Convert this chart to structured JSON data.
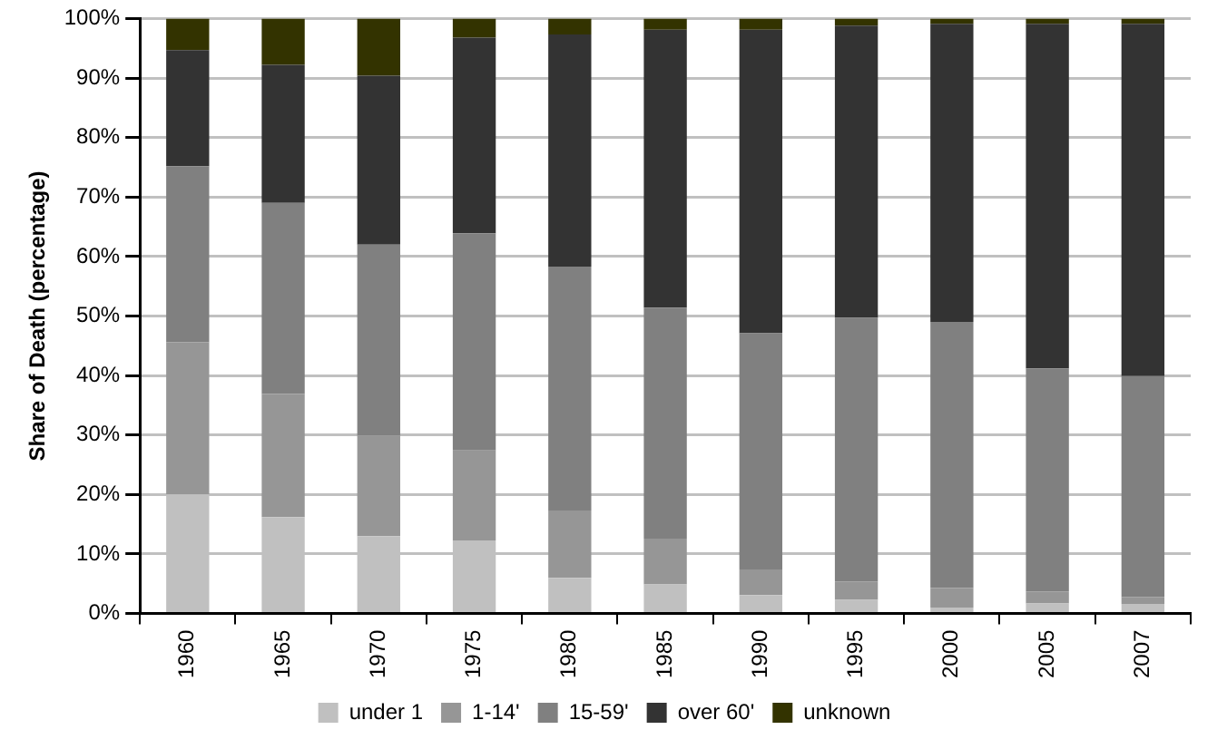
{
  "chart_data": {
    "type": "bar",
    "stacked": true,
    "ylabel": "Share of Death (percentage)",
    "categories": [
      "1960",
      "1965",
      "1970",
      "1975",
      "1980",
      "1985",
      "1990",
      "1995",
      "2000",
      "2005",
      "2007"
    ],
    "series": [
      {
        "name": "under 1",
        "color": "#c0c0c0",
        "values": [
          20,
          16.2,
          13,
          12.3,
          6,
          4.9,
          3.1,
          2.3,
          1,
          1.7,
          1.6
        ]
      },
      {
        "name": "1-14'",
        "color": "#969696",
        "values": [
          25.6,
          20.7,
          16.9,
          15.1,
          11.3,
          7.7,
          4.3,
          3.1,
          3.3,
          2,
          1.2
        ]
      },
      {
        "name": "15-59'",
        "color": "#808080",
        "values": [
          29.6,
          32.1,
          32.1,
          36.5,
          41,
          38.8,
          39.7,
          44.3,
          44.7,
          37.5,
          37.1
        ]
      },
      {
        "name": "over 60'",
        "color": "#333333",
        "values": [
          19.5,
          23.2,
          28.4,
          32.9,
          39,
          46.7,
          51,
          49.1,
          50.1,
          57.9,
          59.2
        ]
      },
      {
        "name": "unknown",
        "color": "#333300",
        "values": [
          5.3,
          7.8,
          9.6,
          3.2,
          2.7,
          1.9,
          1.9,
          1.2,
          0.9,
          0.9,
          0.9
        ]
      }
    ],
    "ylim": [
      0,
      100
    ],
    "yticks": [
      {
        "value": 0,
        "label": "0%"
      },
      {
        "value": 10,
        "label": "10%"
      },
      {
        "value": 20,
        "label": "20%"
      },
      {
        "value": 30,
        "label": "30%"
      },
      {
        "value": 40,
        "label": "40%"
      },
      {
        "value": 50,
        "label": "50%"
      },
      {
        "value": 60,
        "label": "60%"
      },
      {
        "value": 70,
        "label": "70%"
      },
      {
        "value": 80,
        "label": "80%"
      },
      {
        "value": 90,
        "label": "90%"
      },
      {
        "value": 100,
        "label": "100%"
      }
    ],
    "grid": "y",
    "legend": "bottom"
  }
}
